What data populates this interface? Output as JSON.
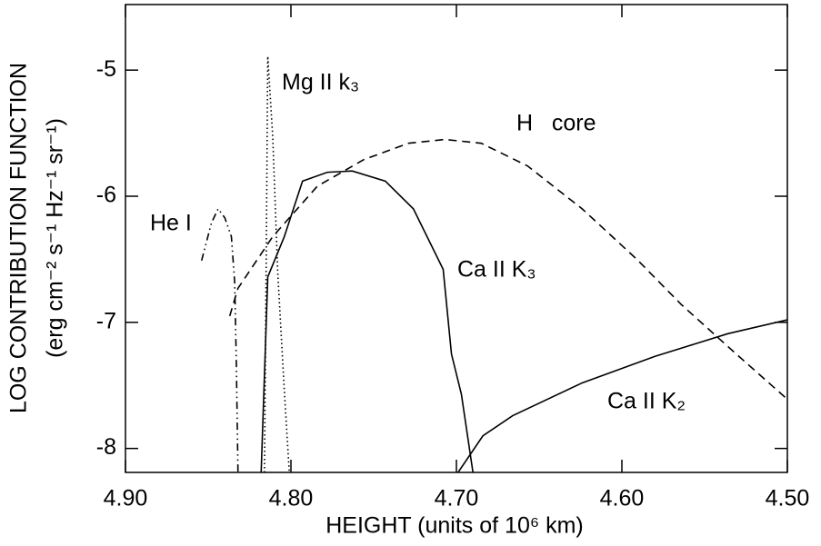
{
  "chart_data": {
    "type": "line",
    "xlabel": "HEIGHT (units of 10⁶ km)",
    "ylabel": [
      "LOG CONTRIBUTION FUNCTION",
      "(erg cm⁻² s⁻¹ Hz⁻¹ sr⁻¹)"
    ],
    "xlim": [
      4.9,
      4.5
    ],
    "ylim": [
      -8.19,
      -4.48
    ],
    "xticks": [
      {
        "value": 4.9,
        "label": "4.90"
      },
      {
        "value": 4.8,
        "label": "4.80"
      },
      {
        "value": 4.7,
        "label": "4.70"
      },
      {
        "value": 4.6,
        "label": "4.60"
      },
      {
        "value": 4.5,
        "label": "4.50"
      }
    ],
    "yticks": [
      -5,
      -6,
      -7,
      -8
    ],
    "series": [
      {
        "name": "He I",
        "color": "#000000",
        "style": "dashdotdot",
        "x": [
          4.854,
          4.848,
          4.844,
          4.84,
          4.836,
          4.834,
          4.833,
          4.832
        ],
        "values": [
          -6.51,
          -6.21,
          -6.1,
          -6.17,
          -6.32,
          -6.68,
          -7.32,
          -8.19
        ]
      },
      {
        "name": "Mg II k₃",
        "color": "#000000",
        "style": "dotted",
        "x": [
          4.816,
          4.815,
          4.814,
          4.811,
          4.808,
          4.804,
          4.801
        ],
        "values": [
          -8.19,
          -6.6,
          -4.89,
          -5.53,
          -6.6,
          -7.54,
          -8.19
        ]
      },
      {
        "name": "H   core",
        "color": "#000000",
        "style": "dashed",
        "x": [
          4.837,
          4.832,
          4.811,
          4.784,
          4.756,
          4.729,
          4.707,
          4.685,
          4.657,
          4.624,
          4.591,
          4.564,
          4.531,
          4.5
        ],
        "values": [
          -6.95,
          -6.73,
          -6.32,
          -5.92,
          -5.71,
          -5.58,
          -5.55,
          -5.58,
          -5.76,
          -6.1,
          -6.5,
          -6.86,
          -7.25,
          -7.61
        ]
      },
      {
        "name": "Ca II K₃",
        "color": "#000000",
        "style": "solid",
        "x": [
          4.818,
          4.814,
          4.804,
          4.793,
          4.778,
          4.763,
          4.743,
          4.726,
          4.708,
          4.703,
          4.697,
          4.69
        ],
        "values": [
          -8.19,
          -6.64,
          -6.32,
          -5.88,
          -5.81,
          -5.8,
          -5.88,
          -6.1,
          -6.58,
          -7.25,
          -7.57,
          -8.19
        ]
      },
      {
        "name": "Ca II K₂",
        "color": "#000000",
        "style": "solid",
        "x": [
          4.699,
          4.684,
          4.666,
          4.624,
          4.58,
          4.536,
          4.5
        ],
        "values": [
          -8.19,
          -7.9,
          -7.74,
          -7.48,
          -7.27,
          -7.09,
          -6.98
        ]
      }
    ]
  }
}
